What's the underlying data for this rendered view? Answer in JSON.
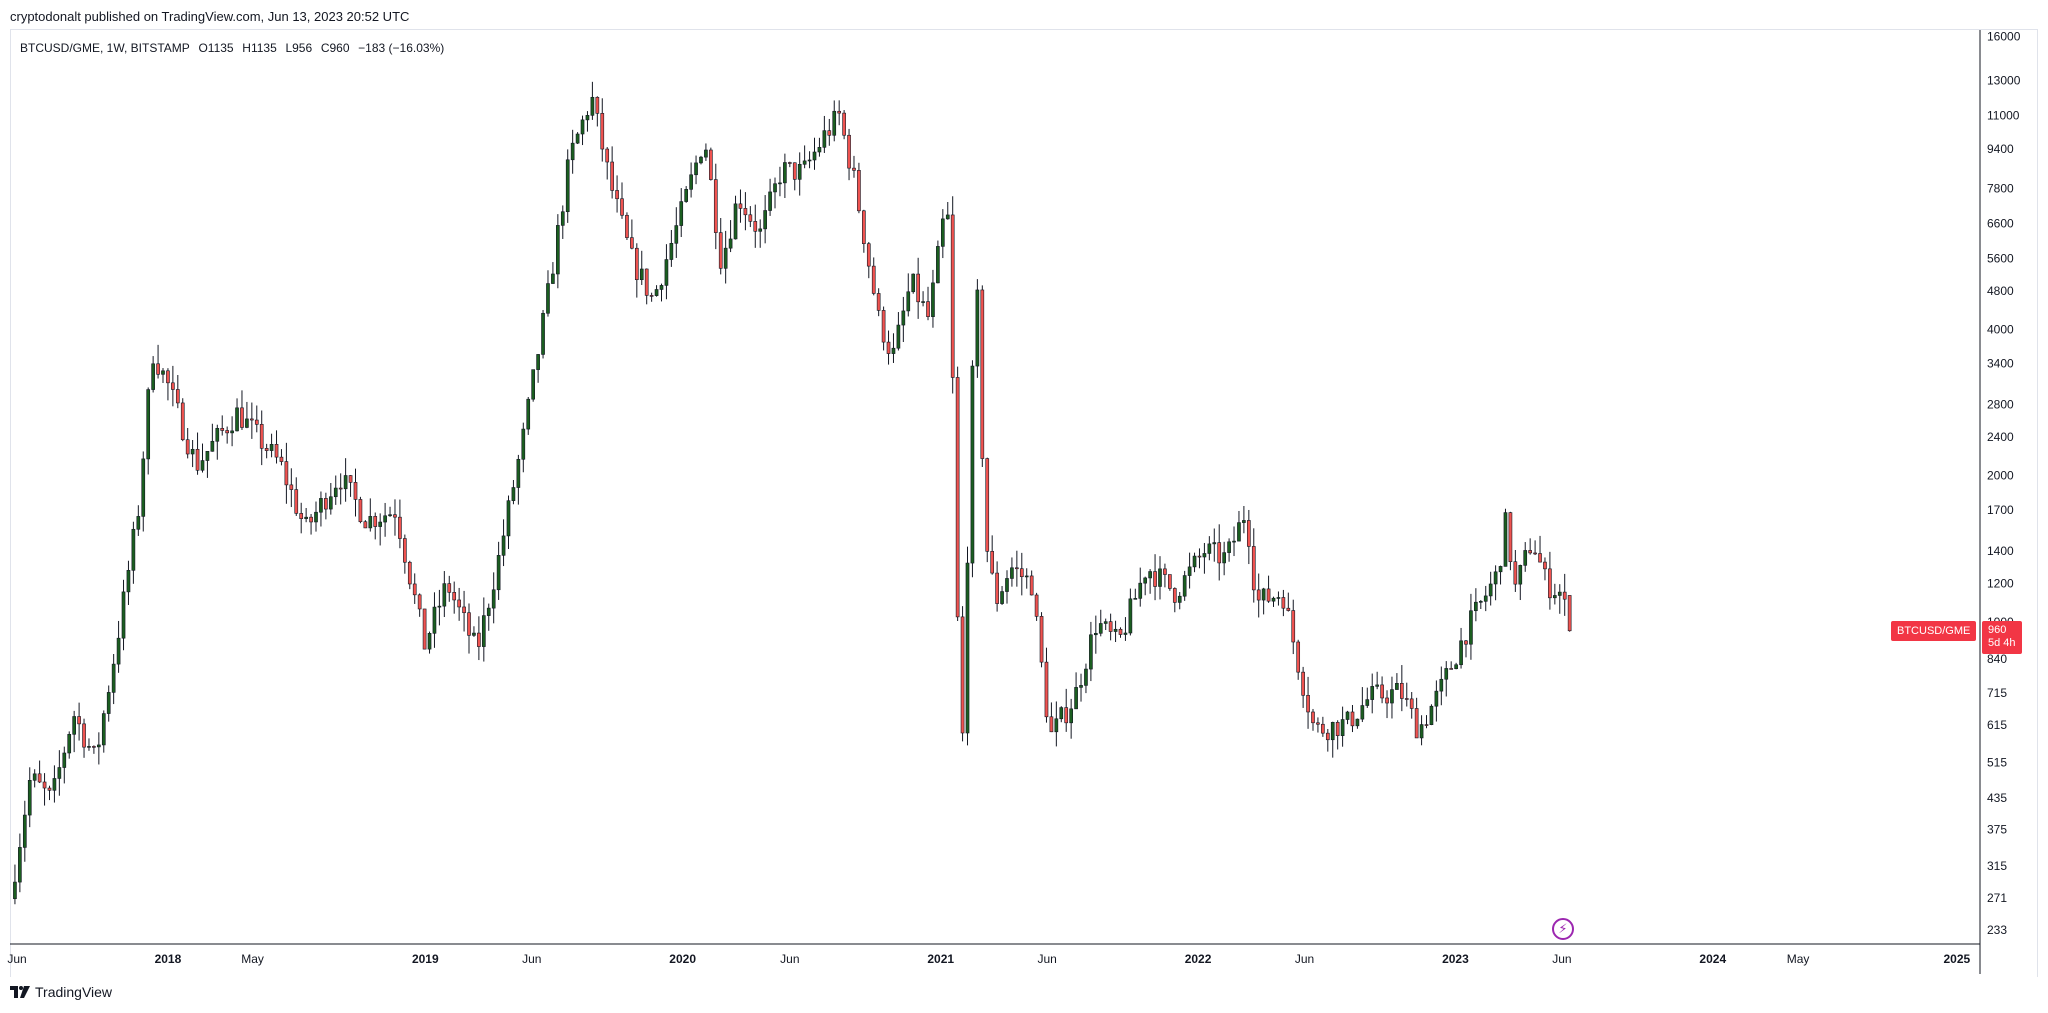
{
  "header": {
    "published": "cryptodonalt published on TradingView.com, Jun 13, 2023 20:52 UTC"
  },
  "legend": {
    "symbol": "BTCUSD/GME, 1W, BITSTAMP",
    "open": "O1135",
    "high": "H1135",
    "low": "L956",
    "close": "C960",
    "change": "−183 (−16.03%)"
  },
  "price_tag": {
    "label": "BTCUSD/GME",
    "value": "960",
    "countdown": "5d 4h"
  },
  "brand": {
    "name": "TradingView",
    "icon": "tradingview-logo-icon"
  },
  "indicator_icon": "lightning-icon",
  "colors": {
    "up": "#26a69a",
    "up_body": "#1b5e20",
    "down": "#ef5350",
    "wick": "#131722",
    "tag": "#f23645",
    "grid": "#e0e3eb"
  },
  "chart_data": {
    "type": "candlestick",
    "title": "BTCUSD/GME",
    "interval": "1W",
    "y_scale": "log",
    "ylim": [
      220,
      16500
    ],
    "y_ticks": [
      "16000",
      "13000",
      "11000",
      "9400",
      "7800",
      "6600",
      "5600",
      "4800",
      "4000",
      "3400",
      "2800",
      "2400",
      "2000",
      "1700",
      "1400",
      "1200",
      "1000",
      "840",
      "715",
      "615",
      "515",
      "435",
      "375",
      "315",
      "271",
      "233"
    ],
    "x_ticks": [
      {
        "label": "Jun",
        "date": "2017-06-01",
        "bold": false
      },
      {
        "label": "2018",
        "date": "2018-01-01",
        "bold": true
      },
      {
        "label": "May",
        "date": "2018-05-01",
        "bold": false
      },
      {
        "label": "2019",
        "date": "2019-01-01",
        "bold": true
      },
      {
        "label": "Jun",
        "date": "2019-06-01",
        "bold": false
      },
      {
        "label": "2020",
        "date": "2020-01-01",
        "bold": true
      },
      {
        "label": "Jun",
        "date": "2020-06-01",
        "bold": false
      },
      {
        "label": "2021",
        "date": "2021-01-01",
        "bold": true
      },
      {
        "label": "Jun",
        "date": "2021-06-01",
        "bold": false
      },
      {
        "label": "2022",
        "date": "2022-01-01",
        "bold": true
      },
      {
        "label": "Jun",
        "date": "2022-06-01",
        "bold": false
      },
      {
        "label": "2023",
        "date": "2023-01-01",
        "bold": true
      },
      {
        "label": "Jun",
        "date": "2023-06-01",
        "bold": false
      },
      {
        "label": "2024",
        "date": "2024-01-01",
        "bold": true
      },
      {
        "label": "May",
        "date": "2024-05-01",
        "bold": false
      },
      {
        "label": "2025",
        "date": "2025-01-01",
        "bold": true
      }
    ],
    "x_range": [
      "2017-05-22",
      "2025-01-14"
    ],
    "close_path": [
      [
        "2017-05-22",
        270
      ],
      [
        "2017-06-20",
        480
      ],
      [
        "2017-07-20",
        430
      ],
      [
        "2017-08-20",
        650
      ],
      [
        "2017-09-20",
        520
      ],
      [
        "2017-10-20",
        900
      ],
      [
        "2017-11-20",
        1700
      ],
      [
        "2017-12-10",
        3600
      ],
      [
        "2017-12-31",
        3100
      ],
      [
        "2018-02-10",
        2100
      ],
      [
        "2018-04-10",
        2700
      ],
      [
        "2018-06-10",
        2100
      ],
      [
        "2018-07-15",
        1550
      ],
      [
        "2018-09-01",
        2000
      ],
      [
        "2018-10-10",
        1620
      ],
      [
        "2018-11-20",
        1700
      ],
      [
        "2018-12-31",
        900
      ],
      [
        "2019-02-01",
        1200
      ],
      [
        "2019-03-15",
        870
      ],
      [
        "2019-04-15",
        1350
      ],
      [
        "2019-05-20",
        2400
      ],
      [
        "2019-06-25",
        4800
      ],
      [
        "2019-07-25",
        9000
      ],
      [
        "2019-08-25",
        12000
      ],
      [
        "2019-09-20",
        8000
      ],
      [
        "2019-10-20",
        5600
      ],
      [
        "2019-11-20",
        4600
      ],
      [
        "2019-12-31",
        7000
      ],
      [
        "2020-02-01",
        10000
      ],
      [
        "2020-02-25",
        5500
      ],
      [
        "2020-03-20",
        7500
      ],
      [
        "2020-04-20",
        6300
      ],
      [
        "2020-05-20",
        8500
      ],
      [
        "2020-06-20",
        8400
      ],
      [
        "2020-07-20",
        10000
      ],
      [
        "2020-08-10",
        11000
      ],
      [
        "2020-09-01",
        8000
      ],
      [
        "2020-10-05",
        4200
      ],
      [
        "2020-10-25",
        3500
      ],
      [
        "2020-11-20",
        5000
      ],
      [
        "2020-12-15",
        4200
      ],
      [
        "2020-12-31",
        6000
      ],
      [
        "2021-01-10",
        7500
      ],
      [
        "2021-01-22",
        2000
      ],
      [
        "2021-01-29",
        400
      ],
      [
        "2021-02-10",
        1800
      ],
      [
        "2021-02-20",
        5600
      ],
      [
        "2021-03-05",
        1500
      ],
      [
        "2021-03-20",
        1100
      ],
      [
        "2021-04-10",
        1300
      ],
      [
        "2021-05-10",
        1200
      ],
      [
        "2021-06-05",
        580
      ],
      [
        "2021-07-10",
        700
      ],
      [
        "2021-08-10",
        1000
      ],
      [
        "2021-09-10",
        900
      ],
      [
        "2021-10-20",
        1300
      ],
      [
        "2021-11-30",
        1150
      ],
      [
        "2022-01-10",
        1400
      ],
      [
        "2022-02-10",
        1350
      ],
      [
        "2022-03-10",
        1700
      ],
      [
        "2022-03-25",
        1100
      ],
      [
        "2022-05-01",
        1150
      ],
      [
        "2022-05-25",
        800
      ],
      [
        "2022-06-15",
        600
      ],
      [
        "2022-08-01",
        620
      ],
      [
        "2022-09-01",
        700
      ],
      [
        "2022-10-15",
        720
      ],
      [
        "2022-11-10",
        600
      ],
      [
        "2022-12-10",
        720
      ],
      [
        "2023-01-15",
        950
      ],
      [
        "2023-02-15",
        1150
      ],
      [
        "2023-03-01",
        1250
      ],
      [
        "2023-03-15",
        1650
      ],
      [
        "2023-03-25",
        1150
      ],
      [
        "2023-04-20",
        1480
      ],
      [
        "2023-05-10",
        1200
      ],
      [
        "2023-06-01",
        1143
      ],
      [
        "2023-06-12",
        960
      ]
    ],
    "last_candle": {
      "open": 1135,
      "high": 1135,
      "low": 956,
      "close": 960
    }
  }
}
